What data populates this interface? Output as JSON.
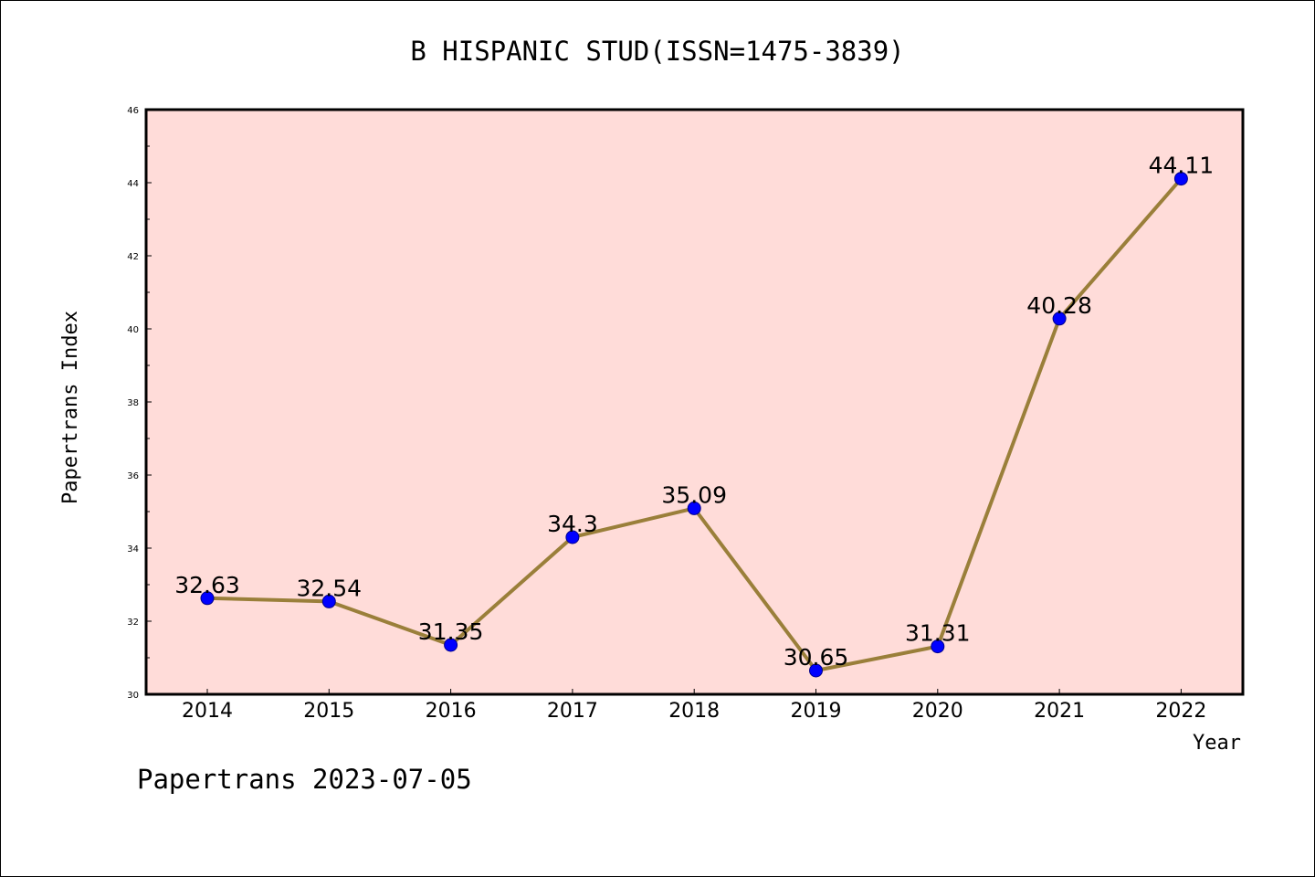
{
  "chart_data": {
    "type": "line",
    "title": "B HISPANIC STUD(ISSN=1475-3839)",
    "xlabel": "Year",
    "ylabel": "Papertrans Index",
    "x": [
      "2014",
      "2015",
      "2016",
      "2017",
      "2018",
      "2019",
      "2020",
      "2021",
      "2022"
    ],
    "series": [
      {
        "values": [
          32.63,
          32.54,
          31.35,
          34.3,
          35.09,
          30.65,
          31.31,
          40.28,
          44.11
        ]
      }
    ],
    "data_labels": [
      "32.63",
      "32.54",
      "31.35",
      "34.3",
      "35.09",
      "30.65",
      "31.31",
      "40.28",
      "44.11"
    ],
    "ylim": [
      30,
      46
    ],
    "yticks": [
      "30",
      "32",
      "34",
      "36",
      "38",
      "40",
      "42",
      "44",
      "46"
    ],
    "grid": false,
    "colors": {
      "plot_bg": "#ffdcd9",
      "line": "#9a7f3a",
      "marker": "#0000ff",
      "marker_edge": "#00008b"
    }
  },
  "footer": "Papertrans 2023-07-05"
}
